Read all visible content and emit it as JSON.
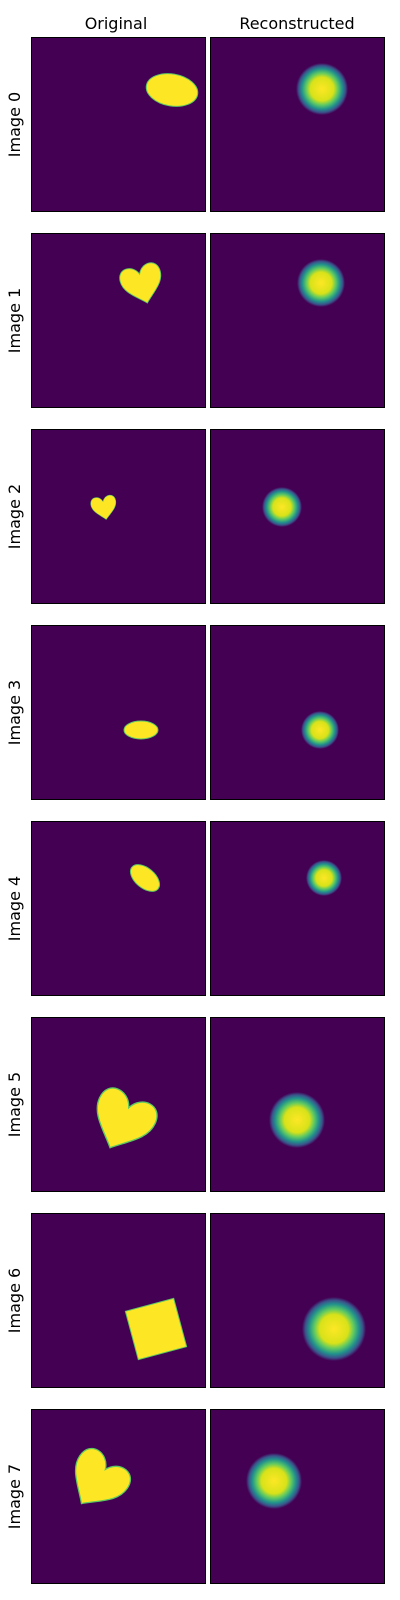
{
  "figure": {
    "column_titles": [
      "Original",
      "Reconstructed"
    ],
    "background_color": "#440154",
    "shape_color": "#fde725",
    "halo_color": "#21918c",
    "rows": [
      {
        "label": "Image 0",
        "original_shape": "ellipse",
        "reconstructed_shape": "gaussian-blob"
      },
      {
        "label": "Image 1",
        "original_shape": "heart",
        "reconstructed_shape": "gaussian-blob"
      },
      {
        "label": "Image 2",
        "original_shape": "heart",
        "reconstructed_shape": "gaussian-blob"
      },
      {
        "label": "Image 3",
        "original_shape": "ellipse",
        "reconstructed_shape": "gaussian-blob"
      },
      {
        "label": "Image 4",
        "original_shape": "ellipse",
        "reconstructed_shape": "gaussian-blob"
      },
      {
        "label": "Image 5",
        "original_shape": "heart",
        "reconstructed_shape": "gaussian-blob"
      },
      {
        "label": "Image 6",
        "original_shape": "square",
        "reconstructed_shape": "gaussian-blob"
      },
      {
        "label": "Image 7",
        "original_shape": "heart",
        "reconstructed_shape": "gaussian-blob"
      }
    ]
  }
}
